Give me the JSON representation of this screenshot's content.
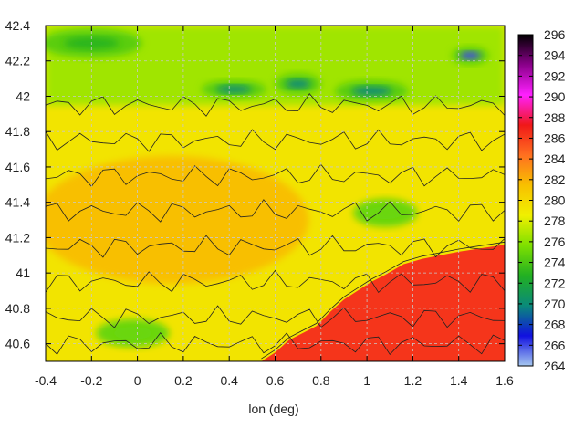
{
  "chart_data": {
    "type": "heatmap",
    "title": "",
    "xlabel": "lon (deg)",
    "ylabel": "",
    "xlim": [
      -0.4,
      1.6
    ],
    "ylim": [
      40.5,
      42.4
    ],
    "x_ticks": [
      "-0.4",
      "-0.2",
      "0",
      "0.2",
      "0.4",
      "0.6",
      "0.8",
      "1",
      "1.2",
      "1.4",
      "1.6"
    ],
    "y_ticks": [
      "40.6",
      "40.8",
      "41",
      "41.2",
      "41.4",
      "41.6",
      "41.8",
      "42",
      "42.2",
      "42.4"
    ],
    "colorbar": {
      "range": [
        264,
        296
      ],
      "ticks": [
        "264",
        "266",
        "268",
        "270",
        "272",
        "274",
        "276",
        "278",
        "280",
        "282",
        "284",
        "286",
        "288",
        "290",
        "292",
        "294",
        "296"
      ],
      "colors": [
        "#a6c8f0",
        "#1010e0",
        "#0a8a7a",
        "#22b022",
        "#7ee000",
        "#f0f000",
        "#f8c000",
        "#ff7020",
        "#f01818",
        "#ff20ff",
        "#8a008a",
        "#000000"
      ]
    },
    "grid": true,
    "legend": "none",
    "features": {
      "coast": [
        [
          0.54,
          40.5
        ],
        [
          0.6,
          40.55
        ],
        [
          0.66,
          40.62
        ],
        [
          0.72,
          40.66
        ],
        [
          0.78,
          40.7
        ],
        [
          0.84,
          40.78
        ],
        [
          0.9,
          40.85
        ],
        [
          0.96,
          40.9
        ],
        [
          1.02,
          40.95
        ],
        [
          1.08,
          40.99
        ],
        [
          1.16,
          41.05
        ],
        [
          1.24,
          41.08
        ],
        [
          1.32,
          41.1
        ],
        [
          1.4,
          41.12
        ],
        [
          1.5,
          41.14
        ],
        [
          1.6,
          41.16
        ]
      ],
      "cold_blobs": [
        {
          "lon": -0.2,
          "lat": 42.3,
          "rx": 0.22,
          "ry": 0.08,
          "level": 273
        },
        {
          "lon": 0.42,
          "lat": 42.04,
          "rx": 0.14,
          "ry": 0.05,
          "level": 270
        },
        {
          "lon": 0.7,
          "lat": 42.07,
          "rx": 0.1,
          "ry": 0.06,
          "level": 270
        },
        {
          "lon": 1.02,
          "lat": 42.03,
          "rx": 0.16,
          "ry": 0.06,
          "level": 270
        },
        {
          "lon": 1.45,
          "lat": 42.23,
          "rx": 0.08,
          "ry": 0.05,
          "level": 266
        },
        {
          "lon": 1.08,
          "lat": 41.34,
          "rx": 0.14,
          "ry": 0.08,
          "level": 275
        },
        {
          "lon": -0.02,
          "lat": 40.66,
          "rx": 0.16,
          "ry": 0.08,
          "level": 275
        }
      ]
    }
  }
}
